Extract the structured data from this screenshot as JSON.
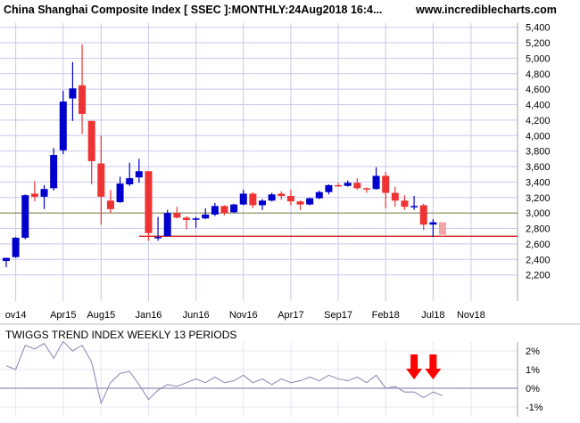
{
  "header": {
    "title": "China Shanghai Composite Index [ SSEC ]:MONTHLY:24Aug2018 16:4...",
    "site": "www.incrediblecharts.com"
  },
  "indicator": {
    "title": "TWIGGS TREND INDEX WEEKLY 13 PERIODS"
  },
  "colors": {
    "up": "#0000cc",
    "down": "#ee3333",
    "current": "#f4a4a4",
    "support_line": "#cc0000",
    "resistance_line": "#8a8a5a",
    "grid": "#c8c8ee",
    "indicator_line": "#8f8fb8",
    "arrow": "#ff0000"
  },
  "chart_data": [
    {
      "type": "candlestick",
      "title": "China Shanghai Composite Index [ SSEC ]:MONTHLY:24Aug2018 16:4...",
      "x_tick_labels": [
        "ov14",
        "Apr15",
        "Aug15",
        "Jan16",
        "Jun16",
        "Nov16",
        "Apr17",
        "Sep17",
        "Feb18",
        "Jul18",
        "Nov18"
      ],
      "x_tick_months": [
        "2014-11",
        "2015-04",
        "2015-08",
        "2016-01",
        "2016-06",
        "2016-11",
        "2017-04",
        "2017-09",
        "2018-02",
        "2018-07",
        "2018-11"
      ],
      "y_tick_labels": [
        "2,200",
        "2,400",
        "2,600",
        "2,800",
        "3,000",
        "3,200",
        "3,400",
        "3,600",
        "3,800",
        "4,000",
        "4,200",
        "4,400",
        "4,600",
        "4,800",
        "5,000",
        "5,200",
        "5,400"
      ],
      "ylim": [
        2000,
        5500
      ],
      "grid": true,
      "horizontal_lines": [
        {
          "level": 2700,
          "style": "support"
        },
        {
          "level": 3000,
          "style": "resistance"
        }
      ],
      "candles": [
        {
          "date": "2014-10",
          "open": 2380,
          "high": 2420,
          "low": 2300,
          "close": 2420
        },
        {
          "date": "2014-11",
          "open": 2430,
          "high": 2690,
          "low": 2420,
          "close": 2680
        },
        {
          "date": "2014-12",
          "open": 2680,
          "high": 3240,
          "low": 2660,
          "close": 3230
        },
        {
          "date": "2015-01",
          "open": 3250,
          "high": 3410,
          "low": 3150,
          "close": 3210
        },
        {
          "date": "2015-02",
          "open": 3210,
          "high": 3360,
          "low": 3050,
          "close": 3310
        },
        {
          "date": "2015-03",
          "open": 3320,
          "high": 3840,
          "low": 3290,
          "close": 3750
        },
        {
          "date": "2015-04",
          "open": 3810,
          "high": 4580,
          "low": 3760,
          "close": 4440
        },
        {
          "date": "2015-05",
          "open": 4480,
          "high": 4950,
          "low": 4190,
          "close": 4610
        },
        {
          "date": "2015-06",
          "open": 4650,
          "high": 5180,
          "low": 4020,
          "close": 4280
        },
        {
          "date": "2015-07",
          "open": 4190,
          "high": 4190,
          "low": 3370,
          "close": 3670
        },
        {
          "date": "2015-08",
          "open": 3640,
          "high": 4000,
          "low": 2850,
          "close": 3210
        },
        {
          "date": "2015-09",
          "open": 3160,
          "high": 3300,
          "low": 3000,
          "close": 3050
        },
        {
          "date": "2015-10",
          "open": 3140,
          "high": 3470,
          "low": 3130,
          "close": 3380
        },
        {
          "date": "2015-11",
          "open": 3370,
          "high": 3650,
          "low": 3350,
          "close": 3450
        },
        {
          "date": "2015-12",
          "open": 3460,
          "high": 3700,
          "low": 3390,
          "close": 3540
        },
        {
          "date": "2016-01",
          "open": 3540,
          "high": 3540,
          "low": 2640,
          "close": 2740
        },
        {
          "date": "2016-02",
          "open": 2690,
          "high": 2950,
          "low": 2640,
          "close": 2690
        },
        {
          "date": "2016-03",
          "open": 2700,
          "high": 3040,
          "low": 2700,
          "close": 3000
        },
        {
          "date": "2016-04",
          "open": 3000,
          "high": 3080,
          "low": 2930,
          "close": 2940
        },
        {
          "date": "2016-05",
          "open": 2940,
          "high": 2960,
          "low": 2790,
          "close": 2910
        },
        {
          "date": "2016-06",
          "open": 2920,
          "high": 2950,
          "low": 2810,
          "close": 2930
        },
        {
          "date": "2016-07",
          "open": 2930,
          "high": 3060,
          "low": 2920,
          "close": 2980
        },
        {
          "date": "2016-08",
          "open": 2980,
          "high": 3130,
          "low": 2960,
          "close": 3090
        },
        {
          "date": "2016-09",
          "open": 3090,
          "high": 3100,
          "low": 2970,
          "close": 3000
        },
        {
          "date": "2016-10",
          "open": 3010,
          "high": 3120,
          "low": 3000,
          "close": 3110
        },
        {
          "date": "2016-11",
          "open": 3110,
          "high": 3300,
          "low": 3100,
          "close": 3250
        },
        {
          "date": "2016-12",
          "open": 3250,
          "high": 3270,
          "low": 3060,
          "close": 3100
        },
        {
          "date": "2017-01",
          "open": 3100,
          "high": 3180,
          "low": 3040,
          "close": 3160
        },
        {
          "date": "2017-02",
          "open": 3160,
          "high": 3260,
          "low": 3150,
          "close": 3240
        },
        {
          "date": "2017-03",
          "open": 3250,
          "high": 3280,
          "low": 3170,
          "close": 3220
        },
        {
          "date": "2017-04",
          "open": 3220,
          "high": 3300,
          "low": 3100,
          "close": 3150
        },
        {
          "date": "2017-05",
          "open": 3150,
          "high": 3160,
          "low": 3040,
          "close": 3110
        },
        {
          "date": "2017-06",
          "open": 3110,
          "high": 3200,
          "low": 3100,
          "close": 3190
        },
        {
          "date": "2017-07",
          "open": 3190,
          "high": 3290,
          "low": 3180,
          "close": 3270
        },
        {
          "date": "2017-08",
          "open": 3270,
          "high": 3370,
          "low": 3240,
          "close": 3360
        },
        {
          "date": "2017-09",
          "open": 3360,
          "high": 3390,
          "low": 3340,
          "close": 3350
        },
        {
          "date": "2017-10",
          "open": 3350,
          "high": 3420,
          "low": 3340,
          "close": 3390
        },
        {
          "date": "2017-11",
          "open": 3390,
          "high": 3450,
          "low": 3300,
          "close": 3320
        },
        {
          "date": "2017-12",
          "open": 3320,
          "high": 3330,
          "low": 3260,
          "close": 3310
        },
        {
          "date": "2018-01",
          "open": 3310,
          "high": 3590,
          "low": 3300,
          "close": 3480
        },
        {
          "date": "2018-02",
          "open": 3480,
          "high": 3530,
          "low": 3060,
          "close": 3260
        },
        {
          "date": "2018-03",
          "open": 3260,
          "high": 3340,
          "low": 3080,
          "close": 3160
        },
        {
          "date": "2018-04",
          "open": 3160,
          "high": 3230,
          "low": 3040,
          "close": 3080
        },
        {
          "date": "2018-05",
          "open": 3080,
          "high": 3220,
          "low": 3040,
          "close": 3090
        },
        {
          "date": "2018-06",
          "open": 3100,
          "high": 3120,
          "low": 2780,
          "close": 2850
        },
        {
          "date": "2018-07",
          "open": 2850,
          "high": 2920,
          "low": 2690,
          "close": 2880
        },
        {
          "date": "2018-08",
          "open": 2880,
          "high": 2880,
          "low": 2690,
          "close": 2720,
          "current": true
        }
      ]
    },
    {
      "type": "line",
      "title": "TWIGGS TREND INDEX WEEKLY 13 PERIODS",
      "y_tick_labels": [
        "-1%",
        "0%",
        "1%",
        "2%"
      ],
      "ylim": [
        -1.3,
        2.6
      ],
      "zero_line": true,
      "annotations": [
        {
          "type": "down-arrow",
          "date": "2018-05"
        },
        {
          "type": "down-arrow",
          "date": "2018-07"
        }
      ],
      "series": [
        {
          "x": [
            "2014-10",
            "2014-11",
            "2014-12",
            "2015-01",
            "2015-02",
            "2015-03",
            "2015-04",
            "2015-05",
            "2015-06",
            "2015-07",
            "2015-08",
            "2015-09",
            "2015-10",
            "2015-11",
            "2015-12",
            "2016-01",
            "2016-02",
            "2016-03",
            "2016-04",
            "2016-05",
            "2016-06",
            "2016-07",
            "2016-08",
            "2016-09",
            "2016-10",
            "2016-11",
            "2016-12",
            "2017-01",
            "2017-02",
            "2017-03",
            "2017-04",
            "2017-05",
            "2017-06",
            "2017-07",
            "2017-08",
            "2017-09",
            "2017-10",
            "2017-11",
            "2017-12",
            "2018-01",
            "2018-02",
            "2018-03",
            "2018-04",
            "2018-05",
            "2018-06",
            "2018-07",
            "2018-08"
          ],
          "values": [
            1.2,
            1.0,
            2.3,
            2.1,
            2.4,
            1.6,
            2.5,
            2.0,
            2.3,
            1.4,
            -0.8,
            0.3,
            0.8,
            0.9,
            0.2,
            -0.6,
            -0.1,
            0.2,
            0.1,
            0.3,
            0.5,
            0.3,
            0.6,
            0.3,
            0.4,
            0.7,
            0.3,
            0.5,
            0.2,
            0.5,
            0.3,
            0.4,
            0.6,
            0.4,
            0.7,
            0.5,
            0.4,
            0.6,
            0.3,
            0.7,
            0.0,
            0.1,
            -0.2,
            -0.2,
            -0.5,
            -0.2,
            -0.4
          ]
        }
      ]
    }
  ]
}
